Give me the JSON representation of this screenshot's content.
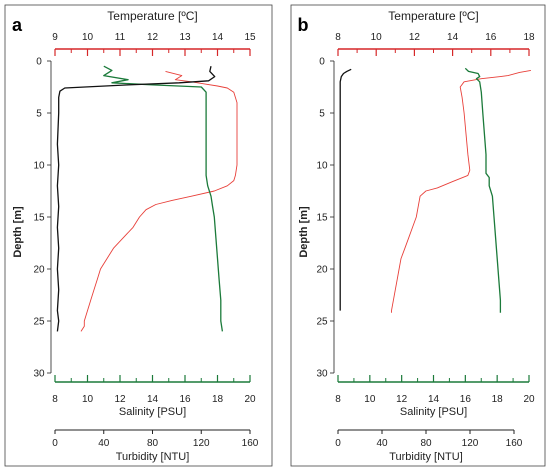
{
  "chart_data": [
    {
      "type": "line",
      "panel_label": "a",
      "temperature_axis": {
        "label": "Temperature [ºC]",
        "ticks": [
          "9",
          "10",
          "11",
          "12",
          "13",
          "14",
          "15"
        ],
        "range": [
          9,
          15
        ]
      },
      "depth_axis": {
        "label": "Depth [m]",
        "ticks": [
          "0",
          "5",
          "10",
          "15",
          "20",
          "25",
          "30"
        ],
        "range": [
          0,
          30
        ]
      },
      "salinity_axis": {
        "label": "Salinity [PSU]",
        "ticks": [
          "8",
          "10",
          "12",
          "14",
          "16",
          "18",
          "20"
        ],
        "range": [
          8,
          20
        ]
      },
      "turbidity_axis": {
        "label": "Turbidity [NTU]",
        "ticks": [
          "0",
          "40",
          "80",
          "120",
          "160"
        ],
        "range": [
          0,
          160
        ]
      },
      "series": [
        {
          "quantity": "temperature",
          "color": "#e8403a",
          "points": [
            [
              12.4,
              1.0
            ],
            [
              12.9,
              1.4
            ],
            [
              12.7,
              1.8
            ],
            [
              13.2,
              2.0
            ],
            [
              13.6,
              2.2
            ],
            [
              14.0,
              2.4
            ],
            [
              14.3,
              2.6
            ],
            [
              14.5,
              3.0
            ],
            [
              14.6,
              4.0
            ],
            [
              14.6,
              6.0
            ],
            [
              14.6,
              8.0
            ],
            [
              14.6,
              10.0
            ],
            [
              14.55,
              11.0
            ],
            [
              14.5,
              11.5
            ],
            [
              14.3,
              12.0
            ],
            [
              13.9,
              12.5
            ],
            [
              13.2,
              13.0
            ],
            [
              12.6,
              13.4
            ],
            [
              12.1,
              13.8
            ],
            [
              11.8,
              14.3
            ],
            [
              11.6,
              15.0
            ],
            [
              11.4,
              16.0
            ],
            [
              11.1,
              17.0
            ],
            [
              10.8,
              18.0
            ],
            [
              10.6,
              19.0
            ],
            [
              10.4,
              20.0
            ],
            [
              10.3,
              21.0
            ],
            [
              10.2,
              22.0
            ],
            [
              10.1,
              23.0
            ],
            [
              10.0,
              24.0
            ],
            [
              9.9,
              25.0
            ],
            [
              9.9,
              25.5
            ],
            [
              9.8,
              26.0
            ]
          ]
        },
        {
          "quantity": "salinity",
          "color": "#1b7a3a",
          "points": [
            [
              11.0,
              0.5
            ],
            [
              11.5,
              0.9
            ],
            [
              11.0,
              1.4
            ],
            [
              12.5,
              1.8
            ],
            [
              11.5,
              2.1
            ],
            [
              14.0,
              2.3
            ],
            [
              17.0,
              2.5
            ],
            [
              17.3,
              3.0
            ],
            [
              17.3,
              5.0
            ],
            [
              17.3,
              8.0
            ],
            [
              17.3,
              10.0
            ],
            [
              17.3,
              11.0
            ],
            [
              17.4,
              12.0
            ],
            [
              17.6,
              13.0
            ],
            [
              17.7,
              14.0
            ],
            [
              17.8,
              15.0
            ],
            [
              17.9,
              17.0
            ],
            [
              18.0,
              19.0
            ],
            [
              18.1,
              21.0
            ],
            [
              18.2,
              23.0
            ],
            [
              18.2,
              25.0
            ],
            [
              18.3,
              26.0
            ]
          ]
        },
        {
          "quantity": "turbidity",
          "color": "#111111",
          "points": [
            [
              128,
              0.5
            ],
            [
              127,
              1.0
            ],
            [
              131,
              1.5
            ],
            [
              126,
              1.9
            ],
            [
              102,
              2.1
            ],
            [
              60,
              2.3
            ],
            [
              8,
              2.6
            ],
            [
              4,
              2.9
            ],
            [
              3,
              3.5
            ],
            [
              3,
              5.0
            ],
            [
              2,
              8.0
            ],
            [
              3,
              10.0
            ],
            [
              2,
              12.0
            ],
            [
              3,
              14.0
            ],
            [
              2,
              16.0
            ],
            [
              3,
              18.0
            ],
            [
              2,
              20.0
            ],
            [
              3,
              22.0
            ],
            [
              2,
              24.0
            ],
            [
              3,
              25.0
            ],
            [
              2,
              26.0
            ]
          ]
        }
      ]
    },
    {
      "type": "line",
      "panel_label": "b",
      "temperature_axis": {
        "label": "Temperature [ºC]",
        "ticks": [
          "8",
          "10",
          "12",
          "14",
          "16",
          "18"
        ],
        "range": [
          8,
          18
        ]
      },
      "depth_axis": {
        "label": "Depth [m]",
        "ticks": [
          "0",
          "5",
          "10",
          "15",
          "20",
          "25",
          "30"
        ],
        "range": [
          0,
          30
        ]
      },
      "salinity_axis": {
        "label": "Salinity [PSU]",
        "ticks": [
          "8",
          "10",
          "12",
          "14",
          "16",
          "18",
          "20"
        ],
        "range": [
          8,
          20
        ]
      },
      "turbidity_axis": {
        "label": "Turbidity [NTU]",
        "ticks": [
          "0",
          "40",
          "80",
          "120",
          "160"
        ],
        "range": [
          0,
          160
        ]
      },
      "series": [
        {
          "quantity": "temperature",
          "color": "#e8403a",
          "points": [
            [
              18.1,
              0.9
            ],
            [
              17.5,
              1.1
            ],
            [
              16.9,
              1.4
            ],
            [
              16.5,
              1.5
            ],
            [
              15.5,
              1.7
            ],
            [
              14.6,
              2.0
            ],
            [
              14.4,
              2.5
            ],
            [
              14.5,
              3.5
            ],
            [
              14.6,
              5.0
            ],
            [
              14.7,
              7.0
            ],
            [
              14.8,
              9.0
            ],
            [
              14.9,
              10.5
            ],
            [
              14.8,
              11.0
            ],
            [
              14.0,
              11.6
            ],
            [
              13.2,
              12.2
            ],
            [
              12.6,
              12.5
            ],
            [
              12.3,
              13.0
            ],
            [
              12.2,
              14.0
            ],
            [
              12.1,
              15.0
            ],
            [
              11.9,
              16.0
            ],
            [
              11.7,
              17.0
            ],
            [
              11.5,
              18.0
            ],
            [
              11.3,
              19.0
            ],
            [
              11.2,
              20.0
            ],
            [
              11.1,
              21.0
            ],
            [
              11.0,
              22.0
            ],
            [
              10.9,
              23.0
            ],
            [
              10.8,
              24.0
            ],
            [
              10.8,
              24.2
            ]
          ]
        },
        {
          "quantity": "salinity",
          "color": "#1b7a3a",
          "points": [
            [
              16.0,
              0.7
            ],
            [
              16.2,
              1.0
            ],
            [
              16.8,
              1.2
            ],
            [
              16.9,
              1.5
            ],
            [
              16.7,
              1.7
            ],
            [
              16.9,
              2.0
            ],
            [
              17.0,
              3.0
            ],
            [
              17.1,
              5.0
            ],
            [
              17.2,
              7.0
            ],
            [
              17.3,
              9.0
            ],
            [
              17.3,
              10.8
            ],
            [
              17.5,
              11.2
            ],
            [
              17.5,
              12.0
            ],
            [
              17.7,
              13.0
            ],
            [
              17.8,
              15.0
            ],
            [
              17.9,
              17.0
            ],
            [
              18.0,
              19.0
            ],
            [
              18.1,
              21.0
            ],
            [
              18.2,
              23.0
            ],
            [
              18.2,
              24.2
            ]
          ]
        },
        {
          "quantity": "turbidity",
          "color": "#111111",
          "points": [
            [
              12,
              0.8
            ],
            [
              8,
              1.0
            ],
            [
              5,
              1.2
            ],
            [
              3,
              1.5
            ],
            [
              2,
              2.0
            ],
            [
              2,
              5.0
            ],
            [
              2,
              10.0
            ],
            [
              2,
              15.0
            ],
            [
              2,
              20.0
            ],
            [
              2,
              24.0
            ]
          ]
        }
      ]
    }
  ]
}
